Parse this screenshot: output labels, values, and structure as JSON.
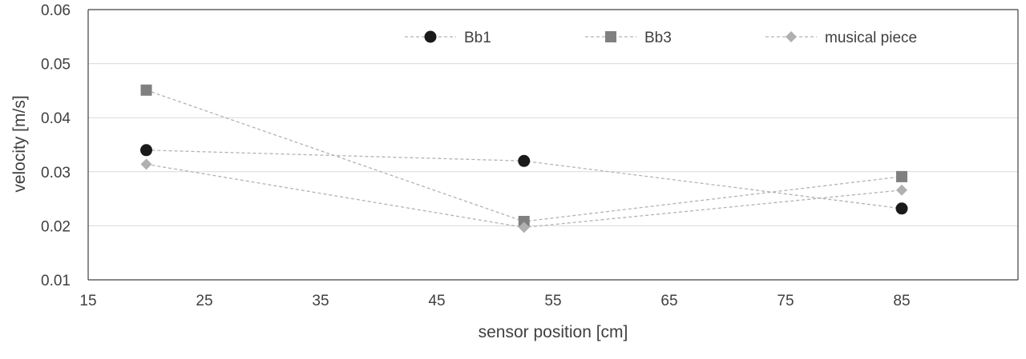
{
  "chart_data": {
    "type": "line",
    "title": "",
    "xlabel": "sensor position [cm]",
    "ylabel": "velocity [m/s]",
    "xlim": [
      15,
      95
    ],
    "ylim": [
      0.01,
      0.06
    ],
    "xticks": [
      15,
      25,
      35,
      45,
      55,
      65,
      75,
      85
    ],
    "yticks": [
      0.01,
      0.02,
      0.03,
      0.04,
      0.05,
      0.06
    ],
    "ytick_labels": [
      "0.01",
      "0.02",
      "0.03",
      "0.04",
      "0.05",
      "0.06"
    ],
    "grid": "horizontal",
    "legend_position": "top-right",
    "x": [
      20,
      52.5,
      85
    ],
    "series": [
      {
        "name": "Bb1",
        "marker": "circle",
        "color": "#1a1a1a",
        "values": [
          0.034,
          0.032,
          0.0232
        ]
      },
      {
        "name": "Bb3",
        "marker": "square",
        "color": "#808080",
        "values": [
          0.0451,
          0.0208,
          0.0291
        ]
      },
      {
        "name": "musical piece",
        "marker": "diamond",
        "color": "#b0b0b0",
        "values": [
          0.0314,
          0.0197,
          0.0266
        ]
      }
    ]
  }
}
